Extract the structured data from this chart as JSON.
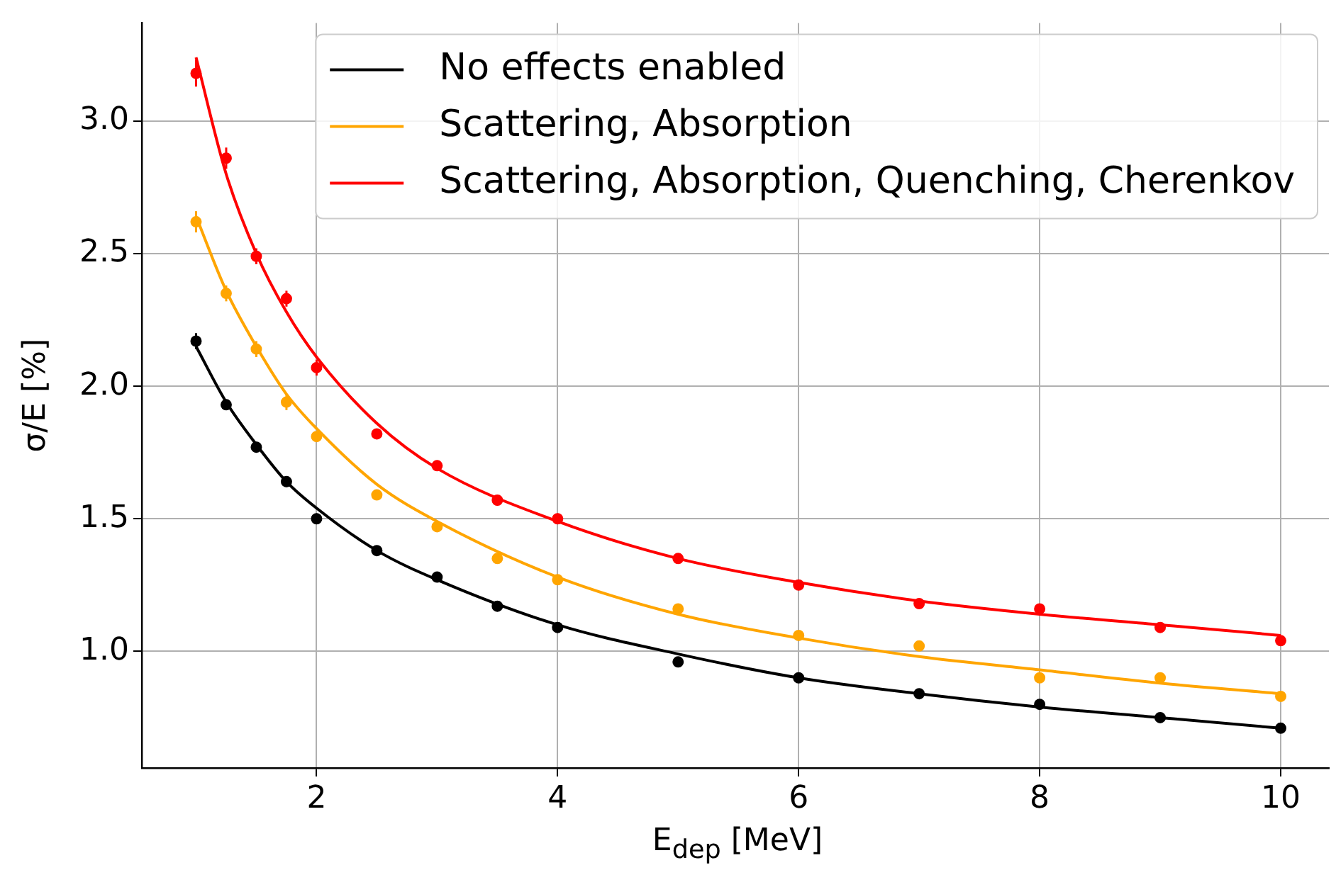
{
  "chart_data": {
    "type": "scatter",
    "xlabel": "E$_{dep}$ [MeV]",
    "ylabel": "σ/E [%]",
    "xlim": [
      0.55,
      10.4
    ],
    "xticks": [
      2,
      4,
      6,
      8,
      10
    ],
    "ylim": [
      0.56,
      3.37
    ],
    "yticks": [
      {
        "value": 1,
        "label": "1.0"
      },
      {
        "value": 1.5,
        "label": "1.5"
      },
      {
        "value": 2,
        "label": "2.0"
      },
      {
        "value": 2.5,
        "label": "2.5"
      },
      {
        "value": 3,
        "label": "3.0"
      }
    ],
    "grid": true,
    "legend": "top right",
    "marker": "circle",
    "series": [
      {
        "type": "line",
        "name": "No effects enabled",
        "color": "#000000",
        "marker": "none",
        "x": [
          1,
          1.25,
          1.5,
          1.75,
          2,
          2.5,
          3,
          4,
          5,
          6,
          7,
          8,
          9,
          10
        ],
        "values": [
          2.15,
          1.94,
          1.78,
          1.64,
          1.54,
          1.38,
          1.27,
          1.1,
          0.99,
          0.9,
          0.84,
          0.79,
          0.75,
          0.71
        ]
      },
      {
        "type": "line",
        "name": "Scattering, Absorption",
        "color": "#ffa500",
        "marker": "none",
        "x": [
          1,
          1.25,
          1.5,
          1.75,
          2,
          2.5,
          3,
          4,
          5,
          6,
          7,
          8,
          9,
          10
        ],
        "values": [
          2.64,
          2.36,
          2.15,
          1.97,
          1.84,
          1.63,
          1.49,
          1.28,
          1.14,
          1.05,
          0.98,
          0.93,
          0.88,
          0.84
        ]
      },
      {
        "type": "line",
        "name": "Scattering, Absorption, Quenching, Cherenkov",
        "color": "#ff0000",
        "marker": "none",
        "x": [
          1,
          1.25,
          1.5,
          1.75,
          2,
          2.5,
          3,
          4,
          5,
          6,
          7,
          8,
          9,
          10
        ],
        "values": [
          3.24,
          2.8,
          2.5,
          2.28,
          2.11,
          1.86,
          1.69,
          1.49,
          1.35,
          1.26,
          1.19,
          1.14,
          1.1,
          1.06
        ]
      },
      {
        "type": "scatter",
        "color": "#000000",
        "x": [
          1,
          1.25,
          1.5,
          1.75,
          2,
          2.5,
          3,
          3.5,
          4,
          5,
          6,
          7,
          8,
          9,
          10
        ],
        "values": [
          2.17,
          1.93,
          1.77,
          1.64,
          1.5,
          1.38,
          1.28,
          1.17,
          1.09,
          0.96,
          0.9,
          0.84,
          0.8,
          0.75,
          0.71
        ],
        "errors": [
          0.03,
          0.02,
          0.02,
          0.02,
          0.02,
          0.01,
          0.01,
          0.01,
          0.01,
          0.01,
          0.01,
          0.01,
          0.01,
          0.01,
          0.01
        ]
      },
      {
        "type": "scatter",
        "color": "#ffa500",
        "x": [
          1,
          1.25,
          1.5,
          1.75,
          2,
          2.5,
          3,
          3.5,
          4,
          5,
          6,
          7,
          8,
          9,
          10
        ],
        "values": [
          2.62,
          2.35,
          2.14,
          1.94,
          1.81,
          1.59,
          1.47,
          1.35,
          1.27,
          1.16,
          1.06,
          1.02,
          0.9,
          0.9,
          0.83
        ],
        "errors": [
          0.04,
          0.03,
          0.03,
          0.03,
          0.02,
          0.02,
          0.02,
          0.01,
          0.01,
          0.01,
          0.01,
          0.01,
          0.01,
          0.01,
          0.01
        ]
      },
      {
        "type": "scatter",
        "color": "#ff0000",
        "x": [
          1,
          1.25,
          1.5,
          1.75,
          2,
          2.5,
          3,
          3.5,
          4,
          5,
          6,
          7,
          8,
          9,
          10
        ],
        "values": [
          3.18,
          2.86,
          2.49,
          2.33,
          2.07,
          1.82,
          1.7,
          1.57,
          1.5,
          1.35,
          1.25,
          1.18,
          1.16,
          1.09,
          1.04
        ],
        "errors": [
          0.05,
          0.04,
          0.03,
          0.03,
          0.03,
          0.02,
          0.02,
          0.02,
          0.02,
          0.01,
          0.01,
          0.01,
          0.01,
          0.01,
          0.01
        ]
      }
    ]
  }
}
